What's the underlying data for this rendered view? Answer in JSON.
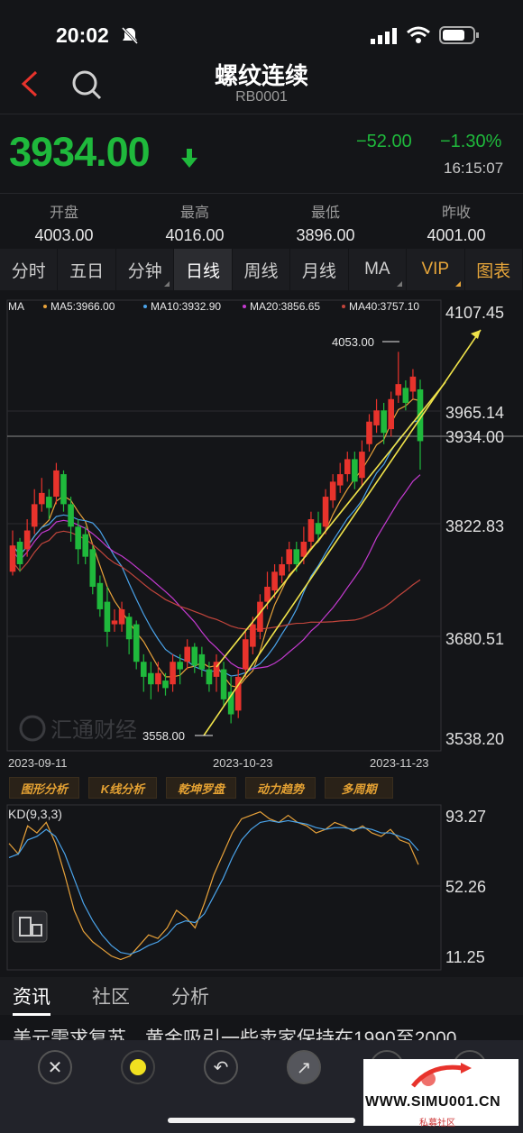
{
  "status": {
    "time": "20:02"
  },
  "header": {
    "title": "螺纹连续",
    "code": "RB0001"
  },
  "quote": {
    "price": "3934.00",
    "change": "−52.00",
    "change_pct": "−1.30%",
    "time": "16:15:07"
  },
  "stats": [
    {
      "label": "开盘",
      "value": "4003.00"
    },
    {
      "label": "最高",
      "value": "4016.00"
    },
    {
      "label": "最低",
      "value": "3896.00"
    },
    {
      "label": "昨收",
      "value": "4001.00"
    }
  ],
  "tabs": [
    "分时",
    "五日",
    "分钟",
    "日线",
    "周线",
    "月线",
    "MA",
    "VIP",
    "图表"
  ],
  "active_tab": "日线",
  "ma_legend": {
    "ma": "MA",
    "ma5": "MA5:3966.00",
    "ma10": "MA10:3932.90",
    "ma20": "MA20:3856.65",
    "ma40": "MA40:3757.10"
  },
  "price_axis": {
    "t1": "4107.45",
    "t2": "3965.14",
    "current": "3934.00",
    "t3": "3822.83",
    "t4": "3680.51",
    "t5": "3538.20"
  },
  "date_axis": {
    "d1": "2023-09-11",
    "d2": "2023-10-23",
    "d3": "2023-11-23"
  },
  "annotations": {
    "high": "4053.00",
    "low": "3558.00"
  },
  "chart_watermark": "汇通财经",
  "tools": [
    "图形分析",
    "K线分析",
    "乾坤罗盘",
    "动力趋势",
    "多周期"
  ],
  "kd": {
    "label": "KD(9,3,3)",
    "t1": "93.27",
    "t2": "52.26",
    "t3": "11.25"
  },
  "news_tabs": [
    "资讯",
    "社区",
    "分析"
  ],
  "headline": "美元需求复苏，黄金吸引一些卖家保持在1990至2000",
  "watermark": {
    "text": "WWW.SIMU001.CN",
    "sub": "私募社区"
  },
  "colors": {
    "up": "#e8332c",
    "down": "#1fb93c",
    "ma5": "#e8a23a",
    "ma10": "#4aa3ea",
    "ma20": "#c43ad0",
    "ma40": "#c2453c",
    "trend": "#f0e34a"
  },
  "chart_data": {
    "type": "candlestick",
    "x": [
      "2023-09-11",
      "2023-10-23",
      "2023-11-23"
    ],
    "ylim": [
      3538.2,
      4107.45
    ],
    "high": 4053.0,
    "low": 3558.0,
    "last": 3934.0
  }
}
